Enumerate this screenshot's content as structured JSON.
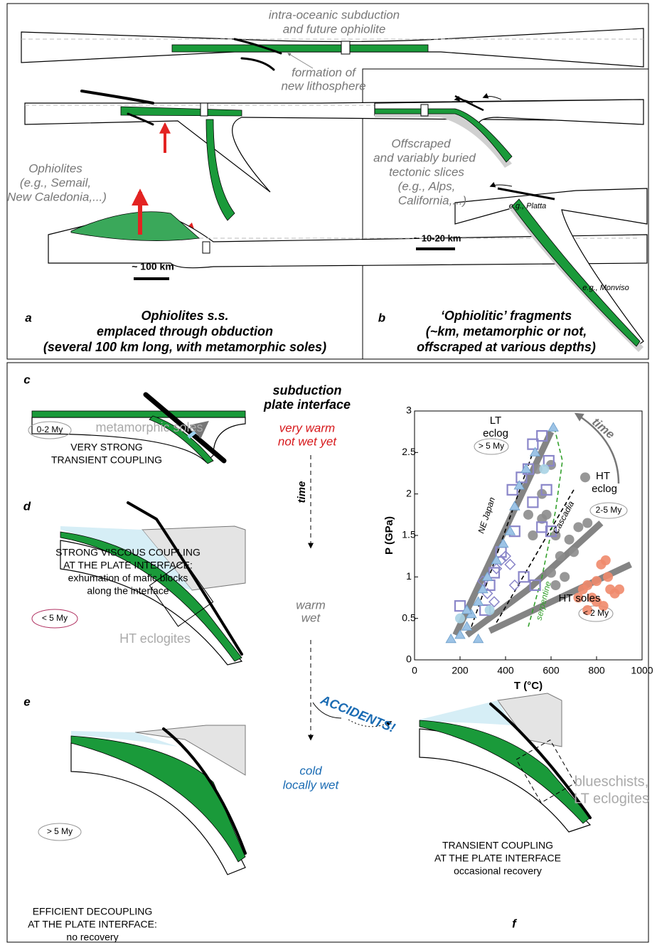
{
  "panel_a": {
    "letter": "a",
    "note_top": [
      "intra-oceanic subduction",
      "and future ophiolite"
    ],
    "note_new_litho": [
      "formation of",
      "new lithosphere"
    ],
    "examples": [
      "Ophiolites",
      "(e.g., Semail,",
      "New Caledonia,...)"
    ],
    "scale": "~ 100 km",
    "caption": [
      "Ophiolites s.s.",
      "emplaced through obduction",
      "(several 100 km long, with metamorphic soles)"
    ]
  },
  "panel_b": {
    "letter": "b",
    "examples": [
      "Offscraped",
      "and variably buried",
      "tectonic slices",
      "(e.g., Alps,",
      "California,...)"
    ],
    "scale": "~ 10-20 km",
    "label_platta": "e.g., Platta",
    "label_monviso": "e.g., Monviso",
    "caption": [
      "‘Ophiolitic’ fragments",
      "(~km, metamorphic or not,",
      "offscraped at various depths)"
    ]
  },
  "panel_c": {
    "letter": "c",
    "age": "0-2 My",
    "rock": "metamorphic soles",
    "caption": [
      "VERY STRONG",
      "TRANSIENT COUPLING"
    ]
  },
  "panel_d": {
    "letter": "d",
    "age": "< 5 My",
    "rock": "HT eclogites",
    "caption": [
      "STRONG VISCOUS COUPLING",
      "AT THE PLATE INTERFACE:",
      "exhumation of mafic blocks",
      "along the interface"
    ]
  },
  "panel_e": {
    "letter": "e",
    "age": "> 5 My",
    "caption": [
      "EFFICIENT DECOUPLING",
      "AT THE PLATE INTERFACE:",
      "no recovery"
    ]
  },
  "panel_f": {
    "letter": "f",
    "rock": [
      "blueschists,",
      "LT eclogites"
    ],
    "caption": [
      "TRANSIENT COUPLING",
      "AT THE PLATE INTERFACE",
      "occasional recovery"
    ]
  },
  "timeline": {
    "heading": [
      "subduction",
      "plate interface"
    ],
    "stage1": [
      "very warm",
      "not wet yet"
    ],
    "time": "time",
    "stage2": [
      "warm",
      "wet"
    ],
    "stage3": [
      "cold",
      "locally wet"
    ],
    "accidents": "ACCIDENTS!"
  },
  "pt_plot": {
    "xlabel": "T (°C)",
    "ylabel": "P (GPa)",
    "xlim": [
      0,
      1000
    ],
    "ylim": [
      0,
      3
    ],
    "xticks": [
      0,
      200,
      400,
      600,
      800,
      1000
    ],
    "yticks": [
      0,
      0.5,
      1,
      1.5,
      2,
      2.5,
      3
    ],
    "labels": {
      "lt": [
        "LT",
        "eclog"
      ],
      "lt_age": "> 5 My",
      "ht": [
        "HT",
        "eclog"
      ],
      "ht_age": "2-5 My",
      "soles": "HT soles",
      "soles_age": "< 2 My",
      "time": "time",
      "ne_japan": "NE Japan",
      "cascadia": "Cascadia",
      "serpentine": "serpentine"
    },
    "curves": [
      {
        "style": "trend",
        "color": "#6e6e6e",
        "x": [
          180,
          600
        ],
        "y": [
          0.3,
          2.75
        ]
      },
      {
        "style": "trend",
        "color": "#6e6e6e",
        "x": [
          230,
          500,
          820
        ],
        "y": [
          0.3,
          0.85,
          1.65
        ]
      },
      {
        "style": "trend",
        "color": "#6e6e6e",
        "x": [
          330,
          950
        ],
        "y": [
          0.35,
          1.15
        ]
      },
      {
        "style": "dashed",
        "color": "#000000",
        "x": [
          250,
          520
        ],
        "y": [
          0.4,
          2.5
        ]
      },
      {
        "style": "dashed",
        "color": "#000000",
        "x": [
          360,
          700
        ],
        "y": [
          0.45,
          2.05
        ]
      },
      {
        "style": "dashed",
        "color": "#33a02c",
        "x": [
          500,
          560,
          620,
          650,
          610
        ],
        "y": [
          0.4,
          1.0,
          1.8,
          2.4,
          2.85
        ]
      }
    ],
    "series": [
      {
        "marker": "circle",
        "color": "#f08a6c",
        "x": [
          740,
          760,
          780,
          800,
          820,
          840,
          850,
          860,
          880,
          800,
          760,
          830,
          900,
          720
        ],
        "y": [
          0.85,
          0.9,
          0.75,
          0.95,
          1.15,
          1.2,
          1.0,
          0.85,
          0.8,
          0.7,
          0.6,
          0.65,
          0.85,
          0.75
        ]
      },
      {
        "marker": "circle",
        "color": "#8c8c8c",
        "x": [
          500,
          520,
          540,
          560,
          580,
          600,
          620,
          640,
          660,
          680,
          700,
          720,
          750,
          760,
          560,
          600,
          620
        ],
        "y": [
          1.75,
          1.5,
          2.3,
          2.0,
          1.75,
          2.35,
          1.5,
          1.25,
          1.0,
          1.45,
          1.3,
          1.6,
          2.2,
          1.65,
          1.7,
          1.05,
          0.9
        ]
      },
      {
        "marker": "square",
        "color": "#8a86c9",
        "x": [
          430,
          470,
          500,
          520,
          560,
          590,
          520,
          560,
          580,
          600,
          440,
          380,
          350,
          330,
          200,
          480,
          530,
          310
        ],
        "y": [
          2.05,
          2.2,
          2.3,
          2.6,
          2.7,
          2.4,
          1.9,
          1.6,
          2.05,
          1.55,
          1.55,
          1.3,
          1.05,
          0.9,
          0.65,
          1.0,
          0.9,
          0.6
        ]
      },
      {
        "marker": "diamond",
        "color": "#8a86c9",
        "x": [
          360,
          380,
          400,
          420,
          440,
          300,
          320,
          350
        ],
        "y": [
          1.1,
          1.2,
          1.25,
          1.15,
          0.9,
          0.95,
          0.8,
          0.7
        ]
      },
      {
        "marker": "triangle",
        "color": "#9cc3e6",
        "x": [
          160,
          200,
          230,
          250,
          280,
          300,
          320,
          360,
          390,
          420,
          440,
          460,
          490,
          530,
          610,
          280,
          230
        ],
        "y": [
          0.25,
          0.3,
          0.4,
          0.55,
          0.7,
          0.85,
          1.0,
          1.2,
          1.4,
          1.55,
          1.85,
          2.1,
          2.3,
          2.5,
          2.8,
          0.25,
          0.6
        ]
      },
      {
        "marker": "circle",
        "color": "#a9d3e4",
        "x": [
          200,
          330,
          570
        ],
        "y": [
          0.5,
          0.6,
          2.3
        ]
      }
    ]
  }
}
